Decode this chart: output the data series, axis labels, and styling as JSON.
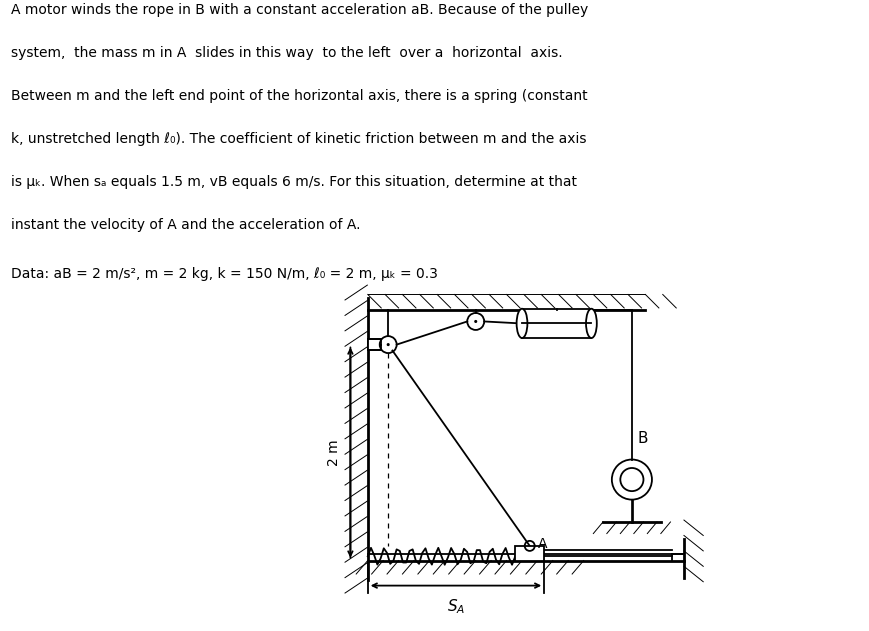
{
  "bg_color": "#ffffff",
  "line_color": "#000000",
  "label_B": "B",
  "label_A": "A",
  "label_sA": "S",
  "dim_label": "2 m",
  "text_line1": "A motor winds the rope in B with a constant acceleration a",
  "text_line1b": "B",
  "text_line2": ". Because of the pulley",
  "problem_text": "A motor winds the rope in B with a constant acceleration aB. Because of the pulley\nsystem, the mass m in A slides in this way to the left over a horizontal axis.\nBetween m and the left end point of the horizontal axis, there is a spring (constant\nk, unstretched length ℓo). The coefficient of kinetic friction between m and the axis\nis μK. When sA equals 1.5 m, vB equals 6 m/s. For this situation, determine at that\ninstant the velocity of A and the acceleration of A.",
  "data_text": "Data: aB = 2 m/s², m = 2 kg, k = 150 N/m, ℓo = 2 m, μK = 0.3",
  "wall_hatch_color": "#555555",
  "lw": 1.3,
  "lw_thick": 2.0,
  "fontsize_main": 10,
  "fontsize_data": 10,
  "fontsize_label": 10
}
